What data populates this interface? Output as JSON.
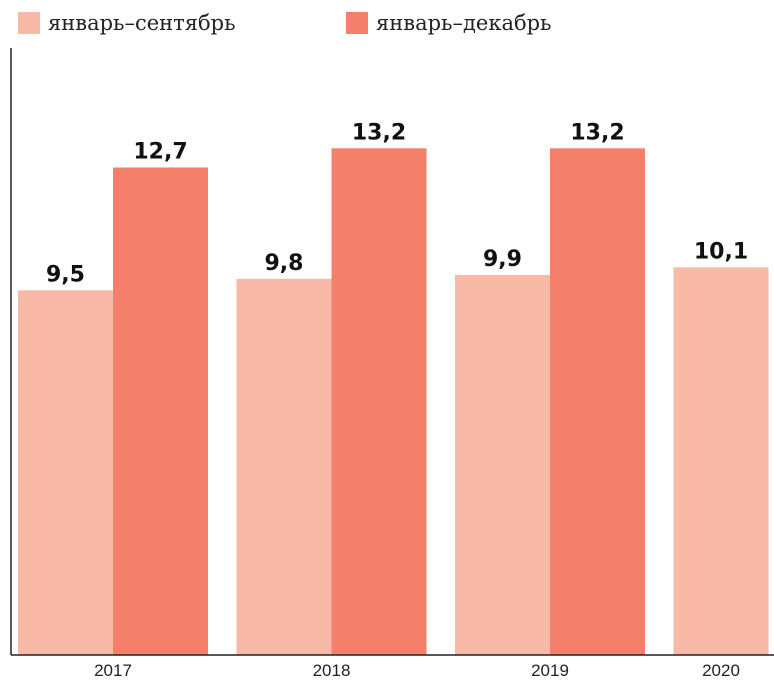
{
  "chart_data": {
    "type": "bar",
    "categories": [
      "2017",
      "2018",
      "2019",
      "2020"
    ],
    "series": [
      {
        "name": "январь–сентябрь",
        "color": "#f8baa6",
        "values": [
          9.5,
          9.8,
          9.9,
          10.1
        ],
        "labels": [
          "9,5",
          "9,8",
          "9,9",
          "10,1"
        ]
      },
      {
        "name": "январь–декабрь",
        "color": "#f47f6b",
        "values": [
          12.7,
          13.2,
          13.2,
          null
        ],
        "labels": [
          "12,7",
          "13,2",
          "13,2",
          ""
        ]
      }
    ],
    "ylim": [
      0,
      15.5
    ],
    "legend_position": "top-left",
    "grid": false,
    "axis_color": "#222222"
  }
}
